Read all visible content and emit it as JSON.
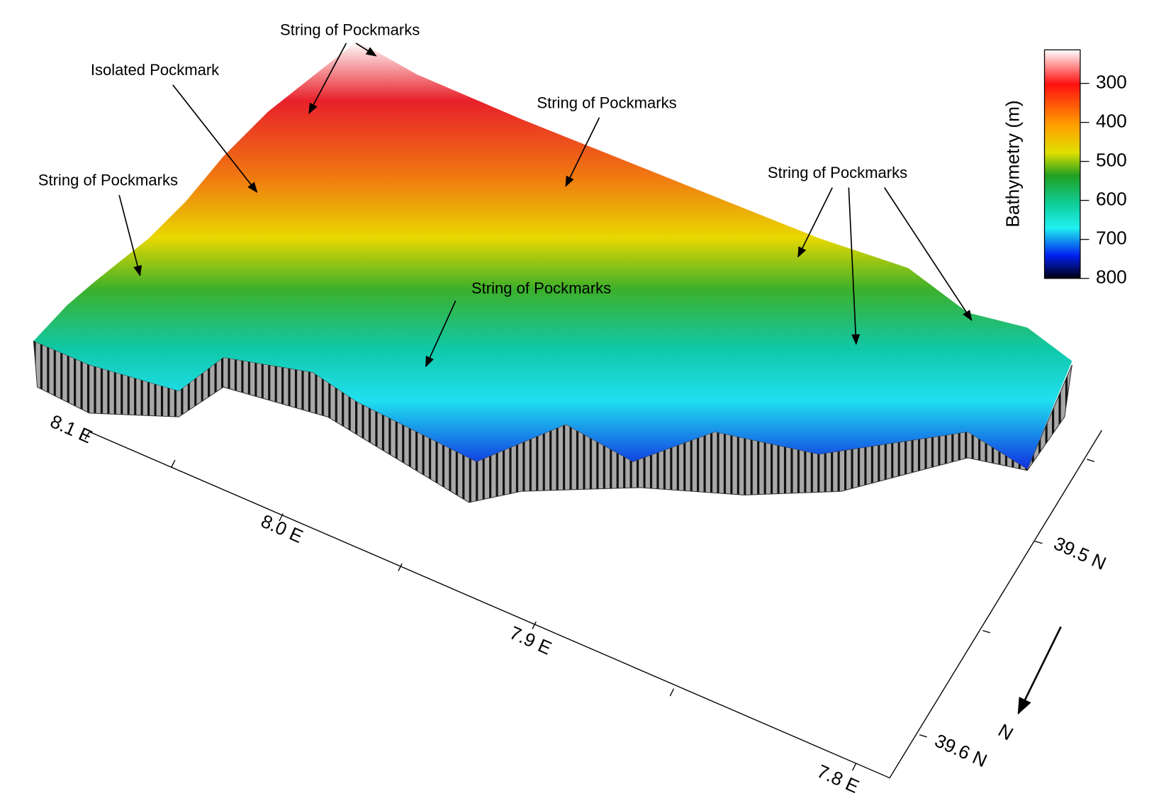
{
  "map": {
    "annotations": [
      "String of Pockmarks",
      "Isolated Pockmark",
      "String of Pockmarks",
      "String of Pockmarks",
      "String of Pockmarks",
      "String of Pockmarks"
    ],
    "colorbar": {
      "label": "Bathymetry (m)",
      "ticks": [
        300,
        400,
        500,
        600,
        700,
        800
      ]
    },
    "x_ticks": [
      "8.1 E",
      "8.0 E",
      "7.9 E",
      "7.8 E"
    ],
    "y_ticks": [
      "39.5 N",
      "39.6 N"
    ],
    "north_arrow": "N"
  }
}
